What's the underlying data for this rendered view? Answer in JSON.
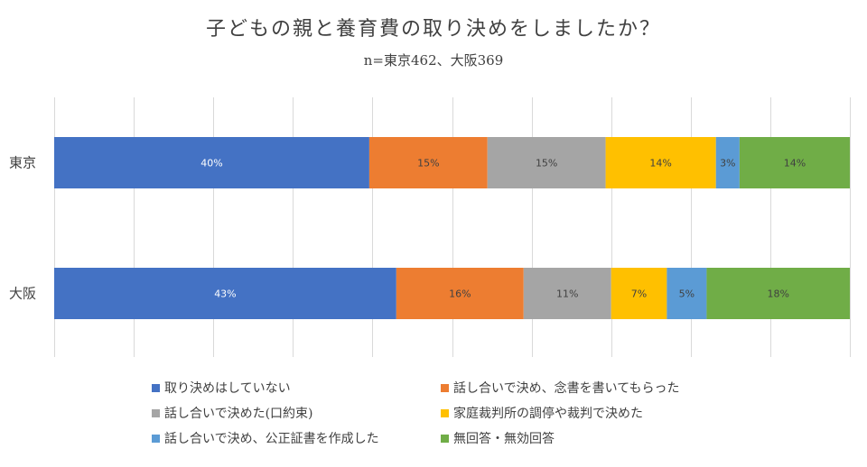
{
  "chart_data": {
    "type": "bar",
    "orientation": "horizontal",
    "stacked": "percent",
    "title": "子どもの親と養育費の取り決めをしましたか？",
    "subtitle": "n=東京462、大阪369",
    "categories": [
      "東京",
      "大阪"
    ],
    "xlim": [
      0,
      100
    ],
    "grid": true,
    "legend_position": "bottom",
    "series": [
      {
        "name": "取り決めはしていない",
        "color": "#4472C4",
        "label_color": "#ffffff",
        "values": [
          40,
          43
        ],
        "labels": [
          "40%",
          "43%"
        ]
      },
      {
        "name": "話し合いで決め、念書を書いてもらった",
        "color": "#ED7D31",
        "label_color": "#404040",
        "values": [
          15,
          16
        ],
        "labels": [
          "15%",
          "16%"
        ]
      },
      {
        "name": "話し合いで決めた(口約束)",
        "color": "#A5A5A5",
        "label_color": "#404040",
        "values": [
          15,
          11
        ],
        "labels": [
          "15%",
          "11%"
        ]
      },
      {
        "name": "家庭裁判所の調停や裁判で決めた",
        "color": "#FFC000",
        "label_color": "#404040",
        "values": [
          14,
          7
        ],
        "labels": [
          "14%",
          "7%"
        ]
      },
      {
        "name": "話し合いで決め、公正証書を作成した",
        "color": "#5B9BD5",
        "label_color": "#404040",
        "values": [
          3,
          5
        ],
        "labels": [
          "3%",
          "5%"
        ]
      },
      {
        "name": "無回答・無効回答",
        "color": "#70AD47",
        "label_color": "#404040",
        "values": [
          14,
          18
        ],
        "labels": [
          "14%",
          "18%"
        ]
      }
    ]
  }
}
